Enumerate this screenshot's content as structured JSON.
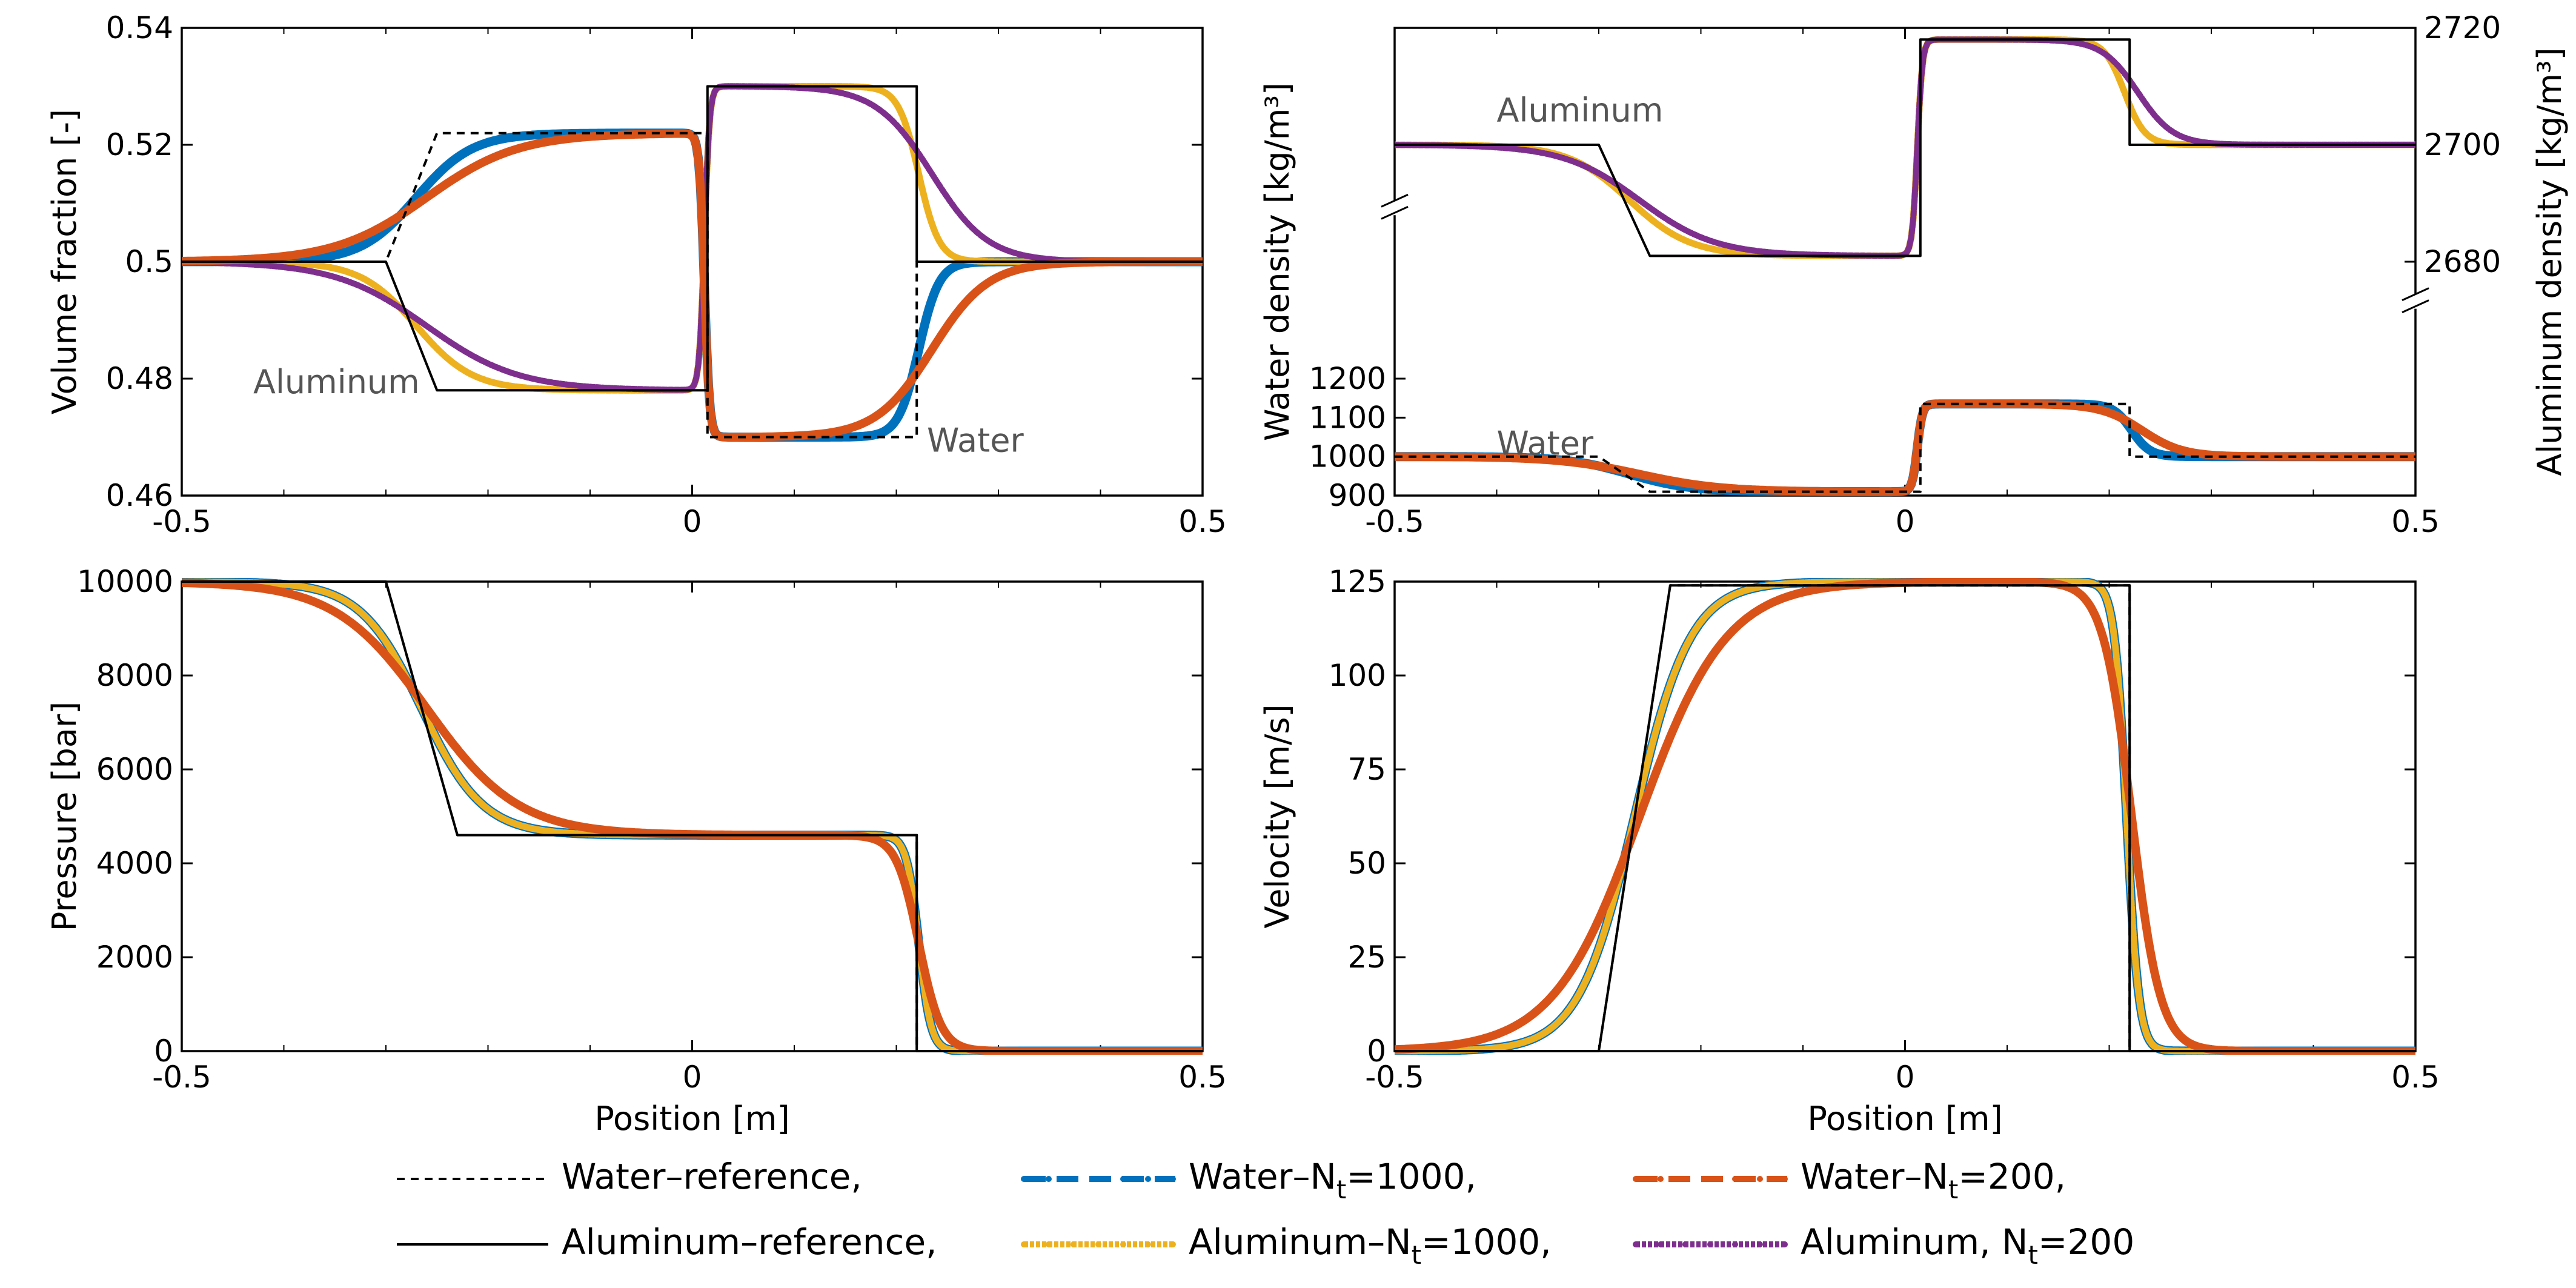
{
  "chart_data": [
    {
      "type": "line",
      "id": "volume_fraction",
      "xlabel": "",
      "ylabel": "Volume fraction [-]",
      "xlim": [
        -0.5,
        0.5
      ],
      "ylim": [
        0.46,
        0.54
      ],
      "xticks": [
        -0.5,
        0,
        0.5
      ],
      "xtick_labels": [
        "-0.5",
        "0",
        "0.5"
      ],
      "yticks": [
        0.46,
        0.48,
        0.5,
        0.52,
        0.54
      ],
      "ytick_labels": [
        "0.46",
        "0.48",
        "0.5",
        "0.52",
        "0.54"
      ],
      "annotations": [
        {
          "text": "Aluminum",
          "x": -0.43,
          "y": 0.4775
        },
        {
          "text": "Water",
          "x": 0.23,
          "y": 0.4675
        }
      ],
      "series": [
        {
          "name": "Water–reference",
          "x": [
            -0.5,
            -0.3,
            -0.25,
            0.015,
            0.015,
            0.22,
            0.22,
            0.5
          ],
          "y": [
            0.5,
            0.5,
            0.522,
            0.522,
            0.47,
            0.47,
            0.5,
            0.5
          ]
        },
        {
          "name": "Aluminum–reference",
          "x": [
            -0.5,
            -0.3,
            -0.25,
            0.015,
            0.015,
            0.22,
            0.22,
            0.5
          ],
          "y": [
            0.5,
            0.5,
            0.478,
            0.478,
            0.53,
            0.53,
            0.5,
            0.5
          ]
        },
        {
          "name": "Water–Nt=1000",
          "steps": [
            {
              "x0": -0.27,
              "w": 0.055,
              "dy": 0.022
            },
            {
              "x0": 0.012,
              "w": 0.005,
              "dy": -0.052
            },
            {
              "x0": 0.222,
              "w": 0.02,
              "dy": 0.03
            }
          ],
          "base": 0.5
        },
        {
          "name": "Aluminum–Nt=1000",
          "steps": [
            {
              "x0": -0.27,
              "w": 0.055,
              "dy": -0.022
            },
            {
              "x0": 0.012,
              "w": 0.005,
              "dy": 0.052
            },
            {
              "x0": 0.222,
              "w": 0.02,
              "dy": -0.03
            }
          ],
          "base": 0.5
        },
        {
          "name": "Water–Nt=200",
          "steps": [
            {
              "x0": -0.26,
              "w": 0.09,
              "dy": 0.022
            },
            {
              "x0": 0.012,
              "w": 0.005,
              "dy": -0.052
            },
            {
              "x0": 0.235,
              "w": 0.055,
              "dy": 0.03
            }
          ],
          "base": 0.5
        },
        {
          "name": "Aluminum, Nt=200",
          "steps": [
            {
              "x0": -0.26,
              "w": 0.09,
              "dy": -0.022
            },
            {
              "x0": 0.012,
              "w": 0.005,
              "dy": 0.052
            },
            {
              "x0": 0.235,
              "w": 0.055,
              "dy": -0.03
            }
          ],
          "base": 0.5
        }
      ]
    },
    {
      "type": "line",
      "id": "density",
      "broken_axis": true,
      "xlabel": "",
      "ylabel": "Water density [kg/m³]",
      "ylabel_right": "Aluminum density [kg/m³]",
      "xlim": [
        -0.5,
        0.5
      ],
      "ylim": [
        900,
        1200
      ],
      "ylim_right": [
        2680,
        2720
      ],
      "xticks": [
        -0.5,
        0,
        0.5
      ],
      "xtick_labels": [
        "-0.5",
        "0",
        "0.5"
      ],
      "yticks": [
        900,
        1000,
        1100,
        1200
      ],
      "ytick_labels": [
        "900",
        "1000",
        "1100",
        "1200"
      ],
      "yticks_right": [
        2680,
        2700,
        2720
      ],
      "ytick_labels_right": [
        "2680",
        "2700",
        "2720"
      ],
      "annotations": [
        {
          "text": "Aluminum",
          "x": -0.4,
          "y_right": 2704
        },
        {
          "text": "Water",
          "x": -0.4,
          "y": 1005
        }
      ],
      "series": [
        {
          "name": "Water–reference",
          "axis": "left",
          "x": [
            -0.5,
            -0.3,
            -0.25,
            0.015,
            0.015,
            0.22,
            0.22,
            0.5
          ],
          "y": [
            1000,
            1000,
            910,
            910,
            1135,
            1135,
            1000,
            1000
          ]
        },
        {
          "name": "Aluminum–reference",
          "axis": "right",
          "x": [
            -0.5,
            -0.3,
            -0.25,
            0.015,
            0.015,
            0.22,
            0.22,
            0.5
          ],
          "y": [
            2700,
            2700,
            2681,
            2681,
            2718,
            2718,
            2700,
            2700
          ]
        },
        {
          "name": "Water–Nt=1000",
          "axis": "left",
          "steps": [
            {
              "x0": -0.27,
              "w": 0.06,
              "dy": -90
            },
            {
              "x0": 0.012,
              "w": 0.005,
              "dy": 225
            },
            {
              "x0": 0.222,
              "w": 0.018,
              "dy": -135
            }
          ],
          "base": 1000
        },
        {
          "name": "Aluminum–Nt=1000",
          "axis": "right",
          "steps": [
            {
              "x0": -0.27,
              "w": 0.06,
              "dy": -19
            },
            {
              "x0": 0.012,
              "w": 0.005,
              "dy": 37
            },
            {
              "x0": 0.215,
              "w": 0.02,
              "dy": -18
            }
          ],
          "base": 2700
        },
        {
          "name": "Water–Nt=200",
          "axis": "left",
          "steps": [
            {
              "x0": -0.26,
              "w": 0.08,
              "dy": -90
            },
            {
              "x0": 0.012,
              "w": 0.005,
              "dy": 225
            },
            {
              "x0": 0.232,
              "w": 0.04,
              "dy": -135
            }
          ],
          "base": 1000
        },
        {
          "name": "Aluminum, Nt=200",
          "axis": "right",
          "steps": [
            {
              "x0": -0.26,
              "w": 0.075,
              "dy": -19
            },
            {
              "x0": 0.012,
              "w": 0.005,
              "dy": 37
            },
            {
              "x0": 0.228,
              "w": 0.035,
              "dy": -18
            }
          ],
          "base": 2700
        }
      ]
    },
    {
      "type": "line",
      "id": "pressure",
      "xlabel": "Position [m]",
      "ylabel": "Pressure [bar]",
      "xlim": [
        -0.5,
        0.5
      ],
      "ylim": [
        0,
        10000
      ],
      "xticks": [
        -0.5,
        0,
        0.5
      ],
      "xtick_labels": [
        "-0.5",
        "0",
        "0.5"
      ],
      "yticks": [
        0,
        2000,
        4000,
        6000,
        8000,
        10000
      ],
      "ytick_labels": [
        "0",
        "2000",
        "4000",
        "6000",
        "8000",
        "10000"
      ],
      "series": [
        {
          "name": "Water–reference",
          "x": [
            -0.5,
            -0.3,
            -0.23,
            0.22,
            0.22,
            0.5
          ],
          "y": [
            10000,
            10000,
            4600,
            4600,
            0,
            0
          ]
        },
        {
          "name": "Aluminum–reference",
          "x": [
            -0.5,
            -0.3,
            -0.23,
            0.22,
            0.22,
            0.5
          ],
          "y": [
            10000,
            10000,
            4600,
            4600,
            0,
            0
          ]
        },
        {
          "name": "Water–Nt=1000",
          "steps": [
            {
              "x0": -0.265,
              "w": 0.06,
              "dy": -5400
            },
            {
              "x0": 0.222,
              "w": 0.012,
              "dy": -4600
            }
          ],
          "base": 10000
        },
        {
          "name": "Aluminum–Nt=1000",
          "steps": [
            {
              "x0": -0.265,
              "w": 0.06,
              "dy": -5400
            },
            {
              "x0": 0.222,
              "w": 0.012,
              "dy": -4600
            }
          ],
          "base": 10000
        },
        {
          "name": "Water–Nt=200",
          "steps": [
            {
              "x0": -0.26,
              "w": 0.09,
              "dy": -5400
            },
            {
              "x0": 0.222,
              "w": 0.022,
              "dy": -4600
            }
          ],
          "base": 10000
        },
        {
          "name": "Aluminum, Nt=200",
          "steps": [
            {
              "x0": -0.26,
              "w": 0.09,
              "dy": -5400
            },
            {
              "x0": 0.222,
              "w": 0.022,
              "dy": -4600
            }
          ],
          "base": 10000
        }
      ]
    },
    {
      "type": "line",
      "id": "velocity",
      "xlabel": "Position [m]",
      "ylabel": "Velocity [m/s]",
      "xlim": [
        -0.5,
        0.5
      ],
      "ylim": [
        0,
        125
      ],
      "xticks": [
        -0.5,
        0,
        0.5
      ],
      "xtick_labels": [
        "-0.5",
        "0",
        "0.5"
      ],
      "yticks": [
        0,
        25,
        50,
        75,
        100,
        125
      ],
      "ytick_labels": [
        "0",
        "25",
        "50",
        "75",
        "100",
        "125"
      ],
      "series": [
        {
          "name": "Water–reference",
          "x": [
            -0.5,
            -0.3,
            -0.23,
            0.22,
            0.22,
            0.5
          ],
          "y": [
            0,
            0,
            124,
            124,
            0,
            0
          ]
        },
        {
          "name": "Aluminum–reference",
          "x": [
            -0.5,
            -0.3,
            -0.23,
            0.22,
            0.22,
            0.5
          ],
          "y": [
            0,
            0,
            124,
            124,
            0,
            0
          ]
        },
        {
          "name": "Water–Nt=1000",
          "steps": [
            {
              "x0": -0.265,
              "w": 0.055,
              "dy": 125
            },
            {
              "x0": 0.217,
              "w": 0.012,
              "dy": -125
            }
          ],
          "base": 0
        },
        {
          "name": "Aluminum–Nt=1000",
          "steps": [
            {
              "x0": -0.265,
              "w": 0.055,
              "dy": 125
            },
            {
              "x0": 0.217,
              "w": 0.012,
              "dy": -125
            }
          ],
          "base": 0
        },
        {
          "name": "Water–Nt=200",
          "steps": [
            {
              "x0": -0.26,
              "w": 0.085,
              "dy": 125
            },
            {
              "x0": 0.222,
              "w": 0.028,
              "dy": -125
            }
          ],
          "base": 0
        },
        {
          "name": "Aluminum, Nt=200",
          "steps": [
            {
              "x0": -0.26,
              "w": 0.085,
              "dy": 125
            },
            {
              "x0": 0.222,
              "w": 0.028,
              "dy": -125
            }
          ],
          "base": 0
        }
      ]
    }
  ],
  "legend": {
    "placement": "bottom",
    "entries": [
      {
        "label": "Water–reference,",
        "color": "#000000",
        "style": "dashed-thin"
      },
      {
        "label_main": "Water–N",
        "label_sub": "t",
        "label_tail": "=1000,",
        "color": "#0072BD",
        "style": "dash-dot"
      },
      {
        "label_main": "Water–N",
        "label_sub": "t",
        "label_tail": "=200,",
        "color": "#D95319",
        "style": "dash-dot"
      },
      {
        "label": "Aluminum–reference,",
        "color": "#000000",
        "style": "solid-thin"
      },
      {
        "label_main": "Aluminum–N",
        "label_sub": "t",
        "label_tail": "=1000,",
        "color": "#EDB120",
        "style": "dotted"
      },
      {
        "label_main": "Aluminum, N",
        "label_sub": "t",
        "label_tail": "=200",
        "color": "#7E2F8E",
        "style": "dotted"
      }
    ]
  },
  "series_colors": {
    "Water–reference": "#000000",
    "Aluminum–reference": "#000000",
    "Water–Nt=1000": "#0072BD",
    "Aluminum–Nt=1000": "#EDB120",
    "Water–Nt=200": "#D95319",
    "Aluminum, Nt=200": "#7E2F8E"
  },
  "annotation_color": "#555555"
}
